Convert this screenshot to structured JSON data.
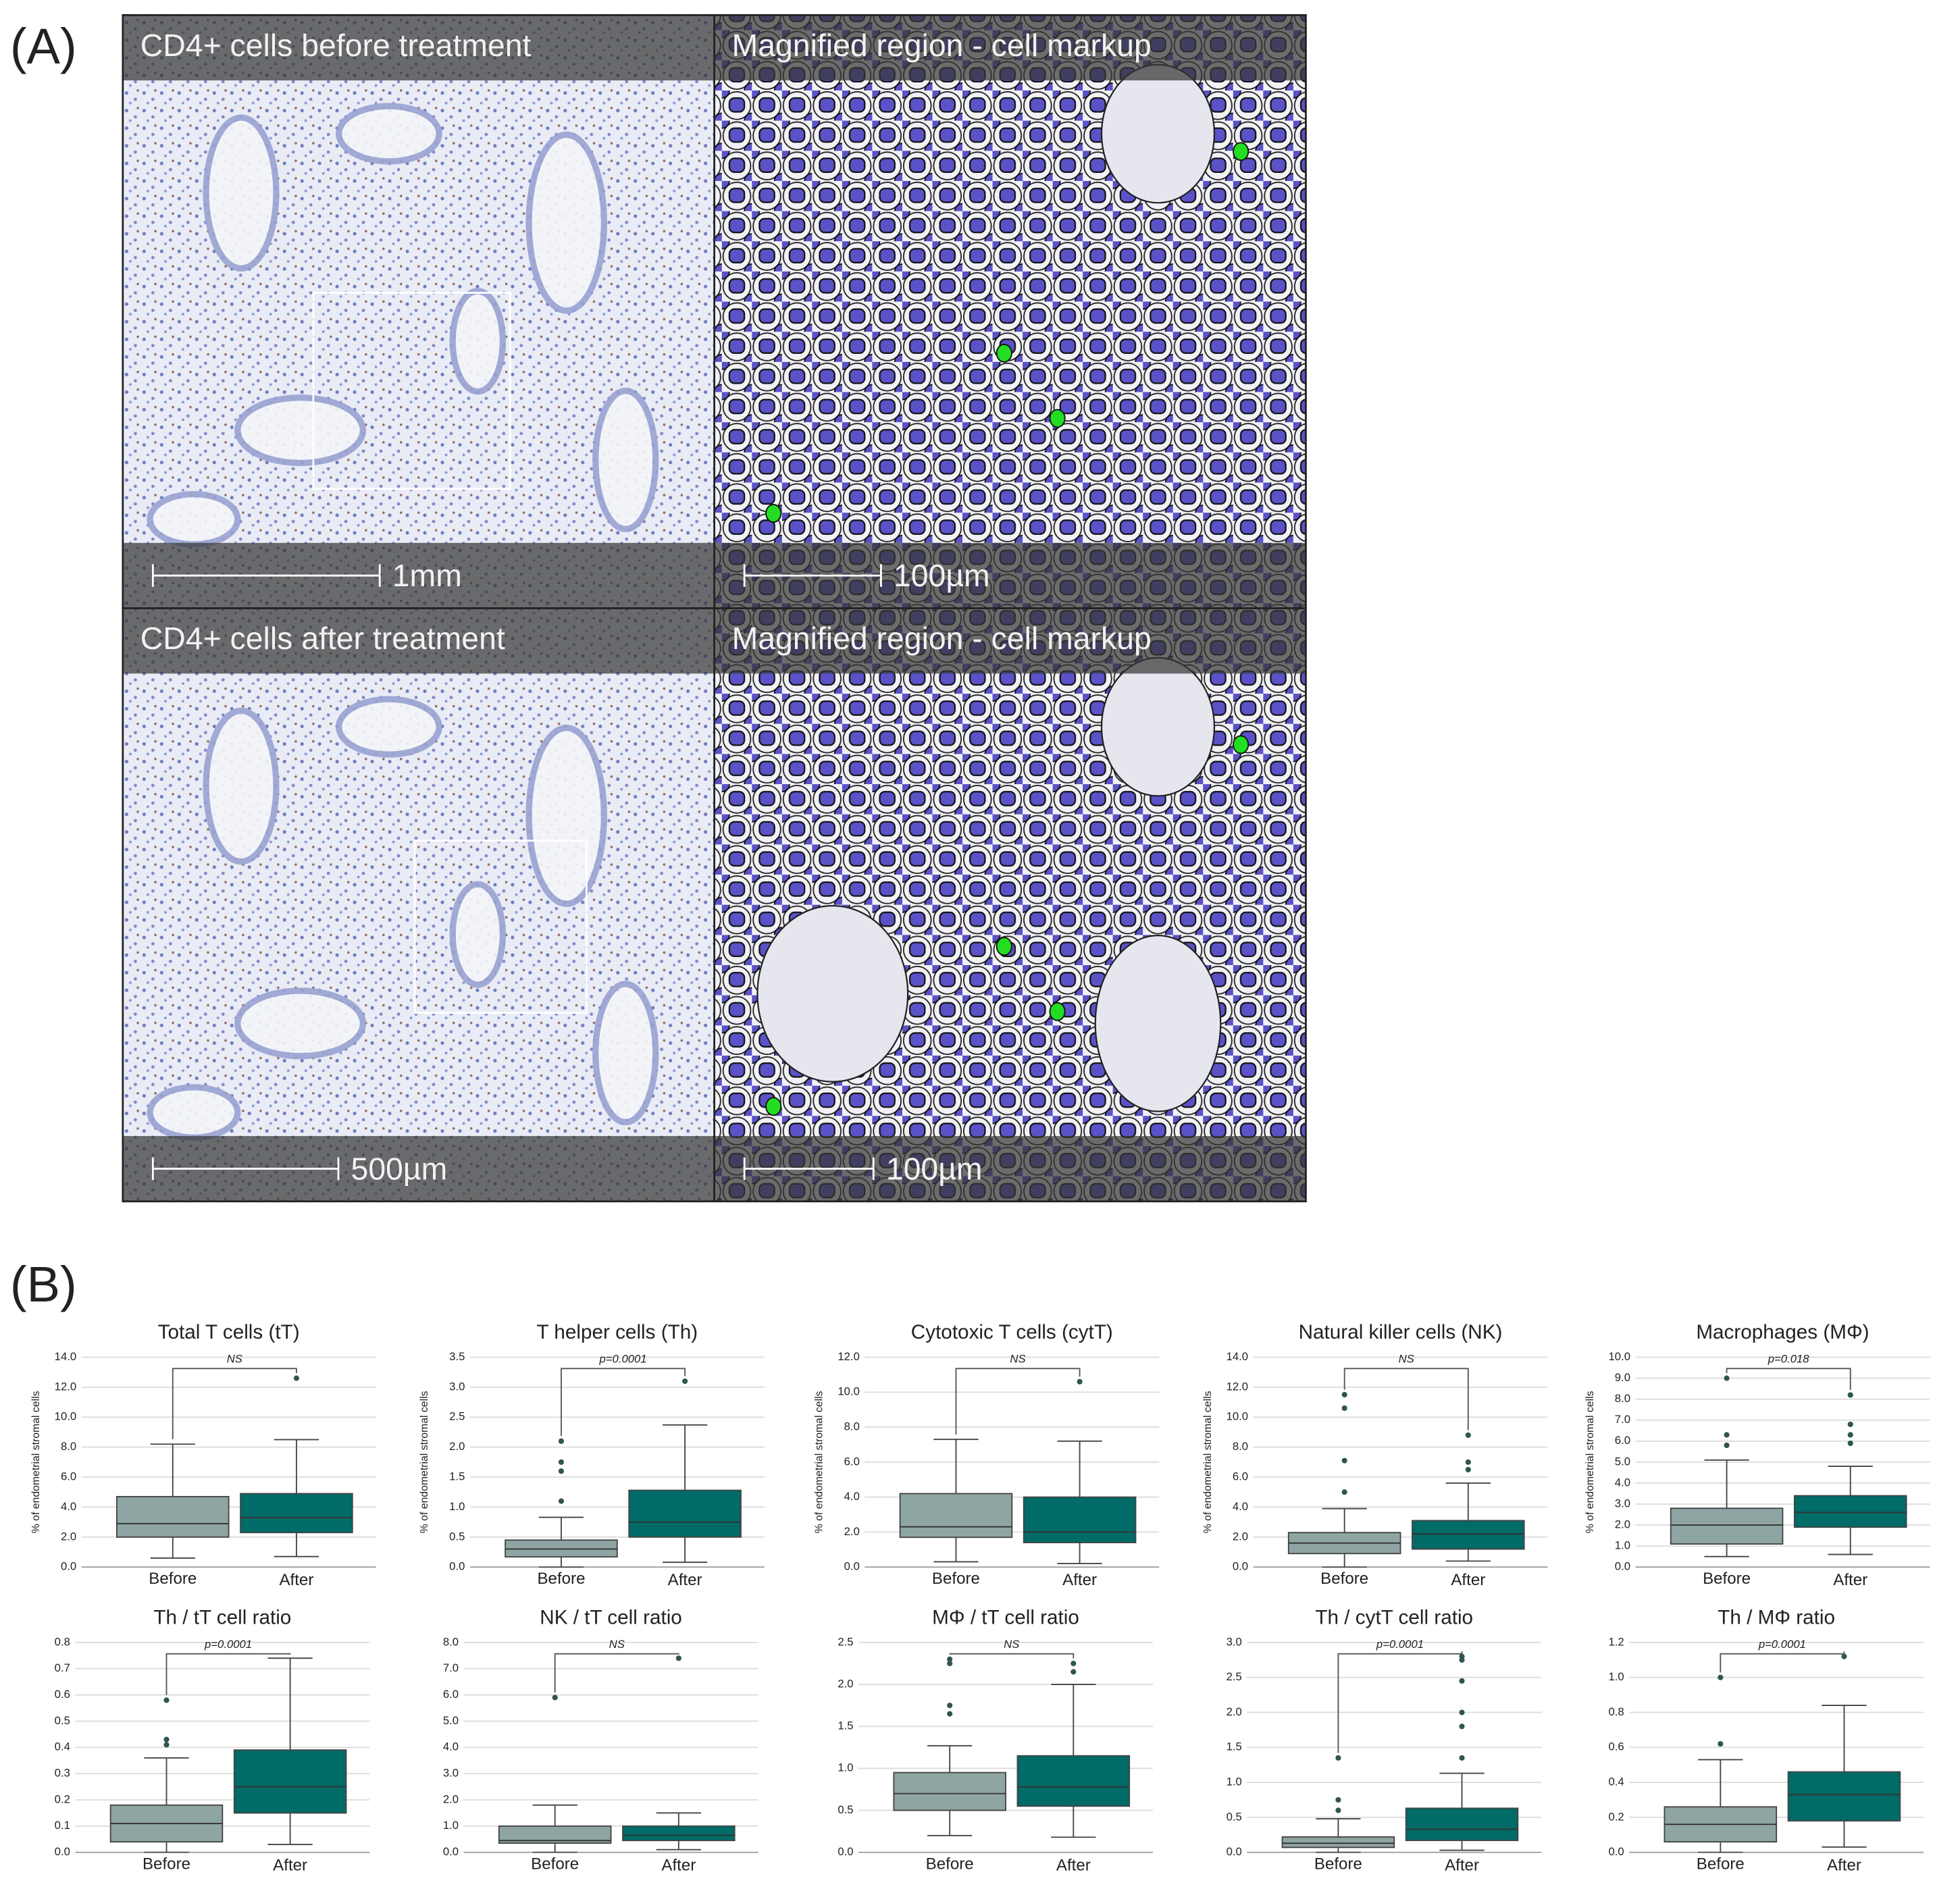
{
  "panel_a": {
    "label": "(A)",
    "tiles": [
      {
        "title": "CD4+ cells before treatment",
        "scale": "1mm"
      },
      {
        "title": "Magnified region - cell markup",
        "scale": "100µm"
      },
      {
        "title": "CD4+ cells after treatment",
        "scale": "500µm"
      },
      {
        "title": "Magnified region - cell markup",
        "scale": "100µm"
      }
    ]
  },
  "panel_b": {
    "label": "(B)"
  },
  "chart_data": [
    {
      "type": "box",
      "title": "Total T cells (tT)",
      "ylabel": "% of endometrial stromal cells",
      "annotation": "NS",
      "categories": [
        "Before",
        "After"
      ],
      "ylim": [
        0,
        14
      ],
      "yticks": [
        {
          "value": 0,
          "label": "0.0"
        },
        {
          "value": 2,
          "label": "2.0"
        },
        {
          "value": 4,
          "label": "4.0"
        },
        {
          "value": 6,
          "label": "6.0"
        },
        {
          "value": 8,
          "label": "8.0"
        },
        {
          "value": 10,
          "label": "10.0"
        },
        {
          "value": 12,
          "label": "12.0"
        },
        {
          "value": 14,
          "label": "14.0"
        }
      ],
      "boxes": [
        {
          "color": "#8fa5a3",
          "min": 0.6,
          "q1": 2.0,
          "median": 2.9,
          "q3": 4.7,
          "max": 8.2,
          "outliers": []
        },
        {
          "color": "#006b67",
          "min": 0.7,
          "q1": 2.3,
          "median": 3.3,
          "q3": 4.9,
          "max": 8.5,
          "outliers": [
            12.6
          ]
        }
      ]
    },
    {
      "type": "box",
      "title": "T helper cells (Th)",
      "ylabel": "% of endometrial stromal cells",
      "annotation": "p=0.0001",
      "categories": [
        "Before",
        "After"
      ],
      "ylim": [
        0,
        3.5
      ],
      "yticks": [
        {
          "value": 0,
          "label": "0.0"
        },
        {
          "value": 0.5,
          "label": "0.5"
        },
        {
          "value": 1,
          "label": "1.0"
        },
        {
          "value": 1.5,
          "label": "1.5"
        },
        {
          "value": 2,
          "label": "2.0"
        },
        {
          "value": 2.5,
          "label": "2.5"
        },
        {
          "value": 3,
          "label": "3.0"
        },
        {
          "value": 3.5,
          "label": "3.5"
        }
      ],
      "boxes": [
        {
          "color": "#8fa5a3",
          "min": 0.0,
          "q1": 0.17,
          "median": 0.3,
          "q3": 0.45,
          "max": 0.83,
          "outliers": [
            1.1,
            1.6,
            1.75,
            2.1
          ]
        },
        {
          "color": "#006b67",
          "min": 0.08,
          "q1": 0.5,
          "median": 0.75,
          "q3": 1.28,
          "max": 2.37,
          "outliers": [
            3.1
          ]
        }
      ]
    },
    {
      "type": "box",
      "title": "Cytotoxic T cells (cytT)",
      "ylabel": "% of endometrial stromal cells",
      "annotation": "NS",
      "categories": [
        "Before",
        "After"
      ],
      "ylim": [
        0,
        12
      ],
      "yticks": [
        {
          "value": 0,
          "label": "0.0"
        },
        {
          "value": 2,
          "label": "2.0"
        },
        {
          "value": 4,
          "label": "4.0"
        },
        {
          "value": 6,
          "label": "6.0"
        },
        {
          "value": 8,
          "label": "8.0"
        },
        {
          "value": 10,
          "label": "10.0"
        },
        {
          "value": 12,
          "label": "12.0"
        }
      ],
      "boxes": [
        {
          "color": "#8fa5a3",
          "min": 0.3,
          "q1": 1.7,
          "median": 2.3,
          "q3": 4.2,
          "max": 7.3,
          "outliers": []
        },
        {
          "color": "#006b67",
          "min": 0.2,
          "q1": 1.4,
          "median": 2.0,
          "q3": 4.0,
          "max": 7.2,
          "outliers": [
            10.6
          ]
        }
      ]
    },
    {
      "type": "box",
      "title": "Natural killer cells (NK)",
      "ylabel": "% of endometrial stromal cells",
      "annotation": "NS",
      "categories": [
        "Before",
        "After"
      ],
      "ylim": [
        0,
        14
      ],
      "yticks": [
        {
          "value": 0,
          "label": "0.0"
        },
        {
          "value": 2,
          "label": "2.0"
        },
        {
          "value": 4,
          "label": "4.0"
        },
        {
          "value": 6,
          "label": "6.0"
        },
        {
          "value": 8,
          "label": "8.0"
        },
        {
          "value": 10,
          "label": "10.0"
        },
        {
          "value": 12,
          "label": "12.0"
        },
        {
          "value": 14,
          "label": "14.0"
        }
      ],
      "boxes": [
        {
          "color": "#8fa5a3",
          "min": 0.0,
          "q1": 0.9,
          "median": 1.6,
          "q3": 2.3,
          "max": 3.9,
          "outliers": [
            5.0,
            7.1,
            10.6,
            11.5
          ]
        },
        {
          "color": "#006b67",
          "min": 0.4,
          "q1": 1.2,
          "median": 2.2,
          "q3": 3.1,
          "max": 5.6,
          "outliers": [
            6.5,
            7.0,
            8.8
          ]
        }
      ]
    },
    {
      "type": "box",
      "title": "Macrophages (MΦ)",
      "ylabel": "% of endometrial stromal cells",
      "annotation": "p=0.018",
      "categories": [
        "Before",
        "After"
      ],
      "ylim": [
        0,
        10
      ],
      "yticks": [
        {
          "value": 0,
          "label": "0.0"
        },
        {
          "value": 1,
          "label": "1.0"
        },
        {
          "value": 2,
          "label": "2.0"
        },
        {
          "value": 3,
          "label": "3.0"
        },
        {
          "value": 4,
          "label": "4.0"
        },
        {
          "value": 5,
          "label": "5.0"
        },
        {
          "value": 6,
          "label": "6.0"
        },
        {
          "value": 7,
          "label": "7.0"
        },
        {
          "value": 8,
          "label": "8.0"
        },
        {
          "value": 9,
          "label": "9.0"
        },
        {
          "value": 10,
          "label": "10.0"
        }
      ],
      "boxes": [
        {
          "color": "#8fa5a3",
          "min": 0.5,
          "q1": 1.1,
          "median": 2.0,
          "q3": 2.8,
          "max": 5.1,
          "outliers": [
            5.8,
            6.3,
            9.0
          ]
        },
        {
          "color": "#006b67",
          "min": 0.6,
          "q1": 1.9,
          "median": 2.6,
          "q3": 3.4,
          "max": 4.8,
          "outliers": [
            5.9,
            6.3,
            6.8,
            8.2
          ]
        }
      ]
    },
    {
      "type": "box",
      "title": "Th / tT cell ratio",
      "annotation": "p=0.0001",
      "categories": [
        "Before",
        "After"
      ],
      "ylim": [
        0,
        0.8
      ],
      "yticks": [
        {
          "value": 0,
          "label": "0.0"
        },
        0.1,
        0.2,
        0.3,
        0.4,
        0.5,
        0.6,
        0.7,
        0.8
      ],
      "boxes": [
        {
          "color": "#8fa5a3",
          "min": 0.0,
          "q1": 0.04,
          "median": 0.11,
          "q3": 0.18,
          "max": 0.36,
          "outliers": [
            0.41,
            0.43,
            0.58
          ]
        },
        {
          "color": "#006b67",
          "min": 0.03,
          "q1": 0.15,
          "median": 0.25,
          "q3": 0.39,
          "max": 0.74,
          "outliers": []
        }
      ]
    },
    {
      "type": "box",
      "title": "NK / tT cell ratio",
      "annotation": "NS",
      "categories": [
        "Before",
        "After"
      ],
      "ylim": [
        0,
        8
      ],
      "yticks": [
        {
          "value": 0,
          "label": "0.0"
        },
        {
          "value": 1,
          "label": "1.0"
        },
        {
          "value": 2,
          "label": "2.0"
        },
        {
          "value": 3,
          "label": "3.0"
        },
        {
          "value": 4,
          "label": "4.0"
        },
        {
          "value": 5,
          "label": "5.0"
        },
        {
          "value": 6,
          "label": "6.0"
        },
        {
          "value": 7,
          "label": "7.0"
        },
        {
          "value": 8,
          "label": "8.0"
        }
      ],
      "boxes": [
        {
          "color": "#8fa5a3",
          "min": 0.0,
          "q1": 0.35,
          "median": 0.45,
          "q3": 1.0,
          "max": 1.8,
          "outliers": [
            5.9
          ]
        },
        {
          "color": "#006b67",
          "min": 0.1,
          "q1": 0.45,
          "median": 0.65,
          "q3": 1.0,
          "max": 1.5,
          "outliers": [
            7.4
          ]
        }
      ]
    },
    {
      "type": "box",
      "title": "MΦ / tT cell ratio",
      "annotation": "NS",
      "categories": [
        "Before",
        "After"
      ],
      "ylim": [
        0,
        2.5
      ],
      "yticks": [
        {
          "value": 0,
          "label": "0.0"
        },
        0.5,
        {
          "value": 1,
          "label": "1.0"
        },
        1.5,
        {
          "value": 2,
          "label": "2.0"
        },
        2.5
      ],
      "boxes": [
        {
          "color": "#8fa5a3",
          "min": 0.2,
          "q1": 0.5,
          "median": 0.7,
          "q3": 0.95,
          "max": 1.27,
          "outliers": [
            1.65,
            1.75,
            2.25,
            2.3
          ]
        },
        {
          "color": "#006b67",
          "min": 0.18,
          "q1": 0.55,
          "median": 0.78,
          "q3": 1.15,
          "max": 2.0,
          "outliers": [
            2.15,
            2.25
          ]
        }
      ]
    },
    {
      "type": "box",
      "title": "Th / cytT cell ratio",
      "annotation": "p=0.0001",
      "categories": [
        "Before",
        "After"
      ],
      "ylim": [
        0,
        3
      ],
      "yticks": [
        {
          "value": 0,
          "label": "0.0"
        },
        0.5,
        {
          "value": 1,
          "label": "1.0"
        },
        1.5,
        {
          "value": 2,
          "label": "2.0"
        },
        2.5,
        {
          "value": 3,
          "label": "3.0"
        }
      ],
      "boxes": [
        {
          "color": "#8fa5a3",
          "min": 0.0,
          "q1": 0.07,
          "median": 0.13,
          "q3": 0.22,
          "max": 0.48,
          "outliers": [
            0.6,
            0.75,
            1.35
          ]
        },
        {
          "color": "#006b67",
          "min": 0.03,
          "q1": 0.17,
          "median": 0.33,
          "q3": 0.63,
          "max": 1.13,
          "outliers": [
            1.35,
            1.8,
            2.0,
            2.45,
            2.75,
            2.8
          ]
        }
      ]
    },
    {
      "type": "box",
      "title": "Th / MΦ ratio",
      "annotation": "p=0.0001",
      "categories": [
        "Before",
        "After"
      ],
      "ylim": [
        0,
        1.2
      ],
      "yticks": [
        {
          "value": 0,
          "label": "0.0"
        },
        0.2,
        0.4,
        0.6,
        0.8,
        {
          "value": 1,
          "label": "1.0"
        },
        1.2
      ],
      "boxes": [
        {
          "color": "#8fa5a3",
          "min": 0.0,
          "q1": 0.06,
          "median": 0.16,
          "q3": 0.26,
          "max": 0.53,
          "outliers": [
            0.62,
            1.0
          ]
        },
        {
          "color": "#006b67",
          "min": 0.03,
          "q1": 0.18,
          "median": 0.33,
          "q3": 0.46,
          "max": 0.84,
          "outliers": [
            1.12
          ]
        }
      ]
    }
  ]
}
